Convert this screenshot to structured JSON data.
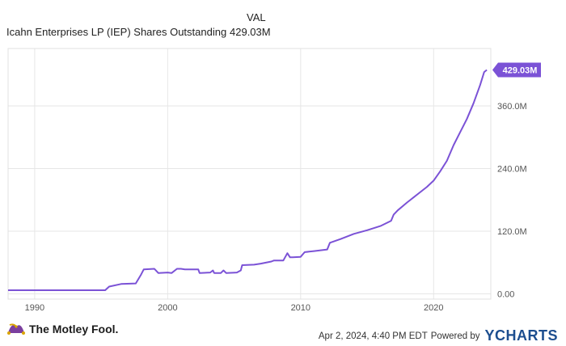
{
  "header": {
    "series_name": "Icahn Enterprises LP (IEP) Shares Outstanding",
    "val_label": "VAL",
    "current_value": "429.03M"
  },
  "chart_data": {
    "type": "line",
    "title": "Icahn Enterprises LP (IEP) Shares Outstanding",
    "xlabel": "",
    "ylabel": "",
    "xlim": [
      1988,
      2024.3
    ],
    "ylim": [
      -10,
      470
    ],
    "x_ticks": [
      1990,
      2000,
      2010,
      2020
    ],
    "y_ticks": [
      0,
      120,
      240,
      360
    ],
    "y_tick_labels": [
      "0.00",
      "120.0M",
      "240.0M",
      "360.0M"
    ],
    "last_value_label": "429.03M",
    "grid": true,
    "line_color": "#7b52d6",
    "series": [
      {
        "name": "Icahn Enterprises LP (IEP) Shares Outstanding",
        "x": [
          1988.0,
          1991.0,
          1995.3,
          1995.6,
          1996.5,
          1997.6,
          1998.0,
          1998.2,
          1999.0,
          1999.3,
          2000.0,
          2000.3,
          2000.7,
          2001.0,
          2001.3,
          2002.3,
          2002.4,
          2003.2,
          2003.4,
          2003.5,
          2004.0,
          2004.2,
          2004.4,
          2005.2,
          2005.5,
          2005.6,
          2006.5,
          2007.0,
          2007.8,
          2008.0,
          2008.7,
          2009.0,
          2009.2,
          2009.4,
          2010.0,
          2010.3,
          2011.0,
          2012.0,
          2012.2,
          2013.0,
          2014.0,
          2015.0,
          2016.0,
          2016.8,
          2017.0,
          2017.3,
          2018.0,
          2018.5,
          2019.0,
          2019.5,
          2020.0,
          2020.5,
          2021.0,
          2021.5,
          2022.0,
          2022.5,
          2023.0,
          2023.5,
          2023.8,
          2024.0
        ],
        "values": [
          7,
          7,
          7,
          14,
          19,
          20,
          37,
          47,
          48,
          40,
          41,
          40,
          48,
          48,
          47,
          47,
          40,
          41,
          45,
          40,
          40,
          45,
          40,
          41,
          45,
          55,
          56,
          58,
          62,
          64,
          64,
          78,
          70,
          70,
          71,
          80,
          82,
          85,
          98,
          105,
          115,
          122,
          130,
          140,
          152,
          160,
          175,
          185,
          195,
          205,
          217,
          235,
          255,
          285,
          310,
          335,
          365,
          400,
          425,
          429
        ]
      }
    ]
  },
  "footer": {
    "brand": "The Motley Fool.",
    "timestamp": "Apr 2, 2024, 4:40 PM EDT",
    "powered_by": "Powered by",
    "provider": "YCHARTS"
  }
}
